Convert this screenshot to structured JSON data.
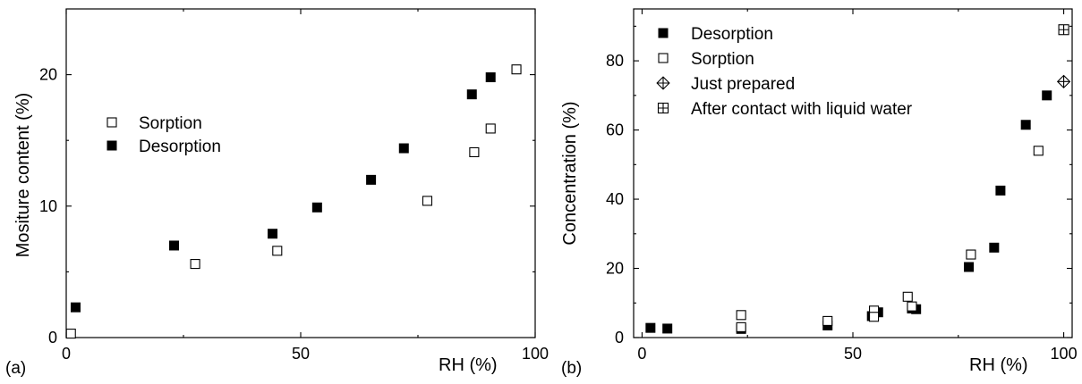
{
  "panels": [
    {
      "label": "(a)"
    },
    {
      "label": "(b)"
    }
  ],
  "colors": {
    "ink": "#000000",
    "paper": "#ffffff"
  },
  "chart_data": [
    {
      "type": "scatter",
      "xlabel": "RH (%)",
      "ylabel": "Mositure content (%)",
      "xlim": [
        0,
        100
      ],
      "ylim": [
        0,
        25
      ],
      "xticks": [
        0,
        50,
        100
      ],
      "yticks": [
        0,
        10,
        20
      ],
      "grid": false,
      "legend": "center-left",
      "series": [
        {
          "name": "Sorption",
          "marker": "open-square",
          "points": [
            [
              1,
              0.3
            ],
            [
              27.5,
              5.6
            ],
            [
              45,
              6.6
            ],
            [
              77,
              10.4
            ],
            [
              87,
              14.1
            ],
            [
              90.5,
              15.9
            ],
            [
              96,
              20.4
            ]
          ]
        },
        {
          "name": "Desorption",
          "marker": "filled-square",
          "points": [
            [
              2,
              2.3
            ],
            [
              23,
              7.0
            ],
            [
              44,
              7.9
            ],
            [
              53.5,
              9.9
            ],
            [
              65,
              12.0
            ],
            [
              72,
              14.4
            ],
            [
              86.5,
              18.5
            ],
            [
              90.5,
              19.8
            ]
          ]
        }
      ]
    },
    {
      "type": "scatter",
      "xlabel": "RH (%)",
      "ylabel": "Concentration (%)",
      "xlim": [
        -2,
        102
      ],
      "ylim": [
        0,
        95
      ],
      "xticks": [
        0,
        50,
        100
      ],
      "yticks": [
        0,
        20,
        40,
        60,
        80
      ],
      "grid": false,
      "legend": "top-left",
      "series": [
        {
          "name": "Desorption",
          "marker": "filled-square",
          "points": [
            [
              2,
              2.8
            ],
            [
              6,
              2.6
            ],
            [
              23.5,
              2.5
            ],
            [
              44,
              3.5
            ],
            [
              54.5,
              6.2
            ],
            [
              56,
              7.3
            ],
            [
              64,
              8.4
            ],
            [
              65,
              8.2
            ],
            [
              77.5,
              20.4
            ],
            [
              83.5,
              26
            ],
            [
              85,
              42.5
            ],
            [
              91,
              61.5
            ],
            [
              96,
              70
            ]
          ]
        },
        {
          "name": "Sorption",
          "marker": "open-square",
          "points": [
            [
              23.5,
              6.5
            ],
            [
              23.5,
              3.0
            ],
            [
              44,
              4.8
            ],
            [
              55,
              7.8
            ],
            [
              55,
              6.0
            ],
            [
              63,
              11.8
            ],
            [
              64,
              9.0
            ],
            [
              78,
              24
            ],
            [
              94,
              54
            ]
          ]
        },
        {
          "name": "Just prepared",
          "marker": "open-diamond-plus",
          "points": [
            [
              100,
              74
            ]
          ]
        },
        {
          "name": "After contact with liquid water",
          "marker": "open-square-plus",
          "points": [
            [
              100,
              89
            ]
          ]
        }
      ]
    }
  ]
}
